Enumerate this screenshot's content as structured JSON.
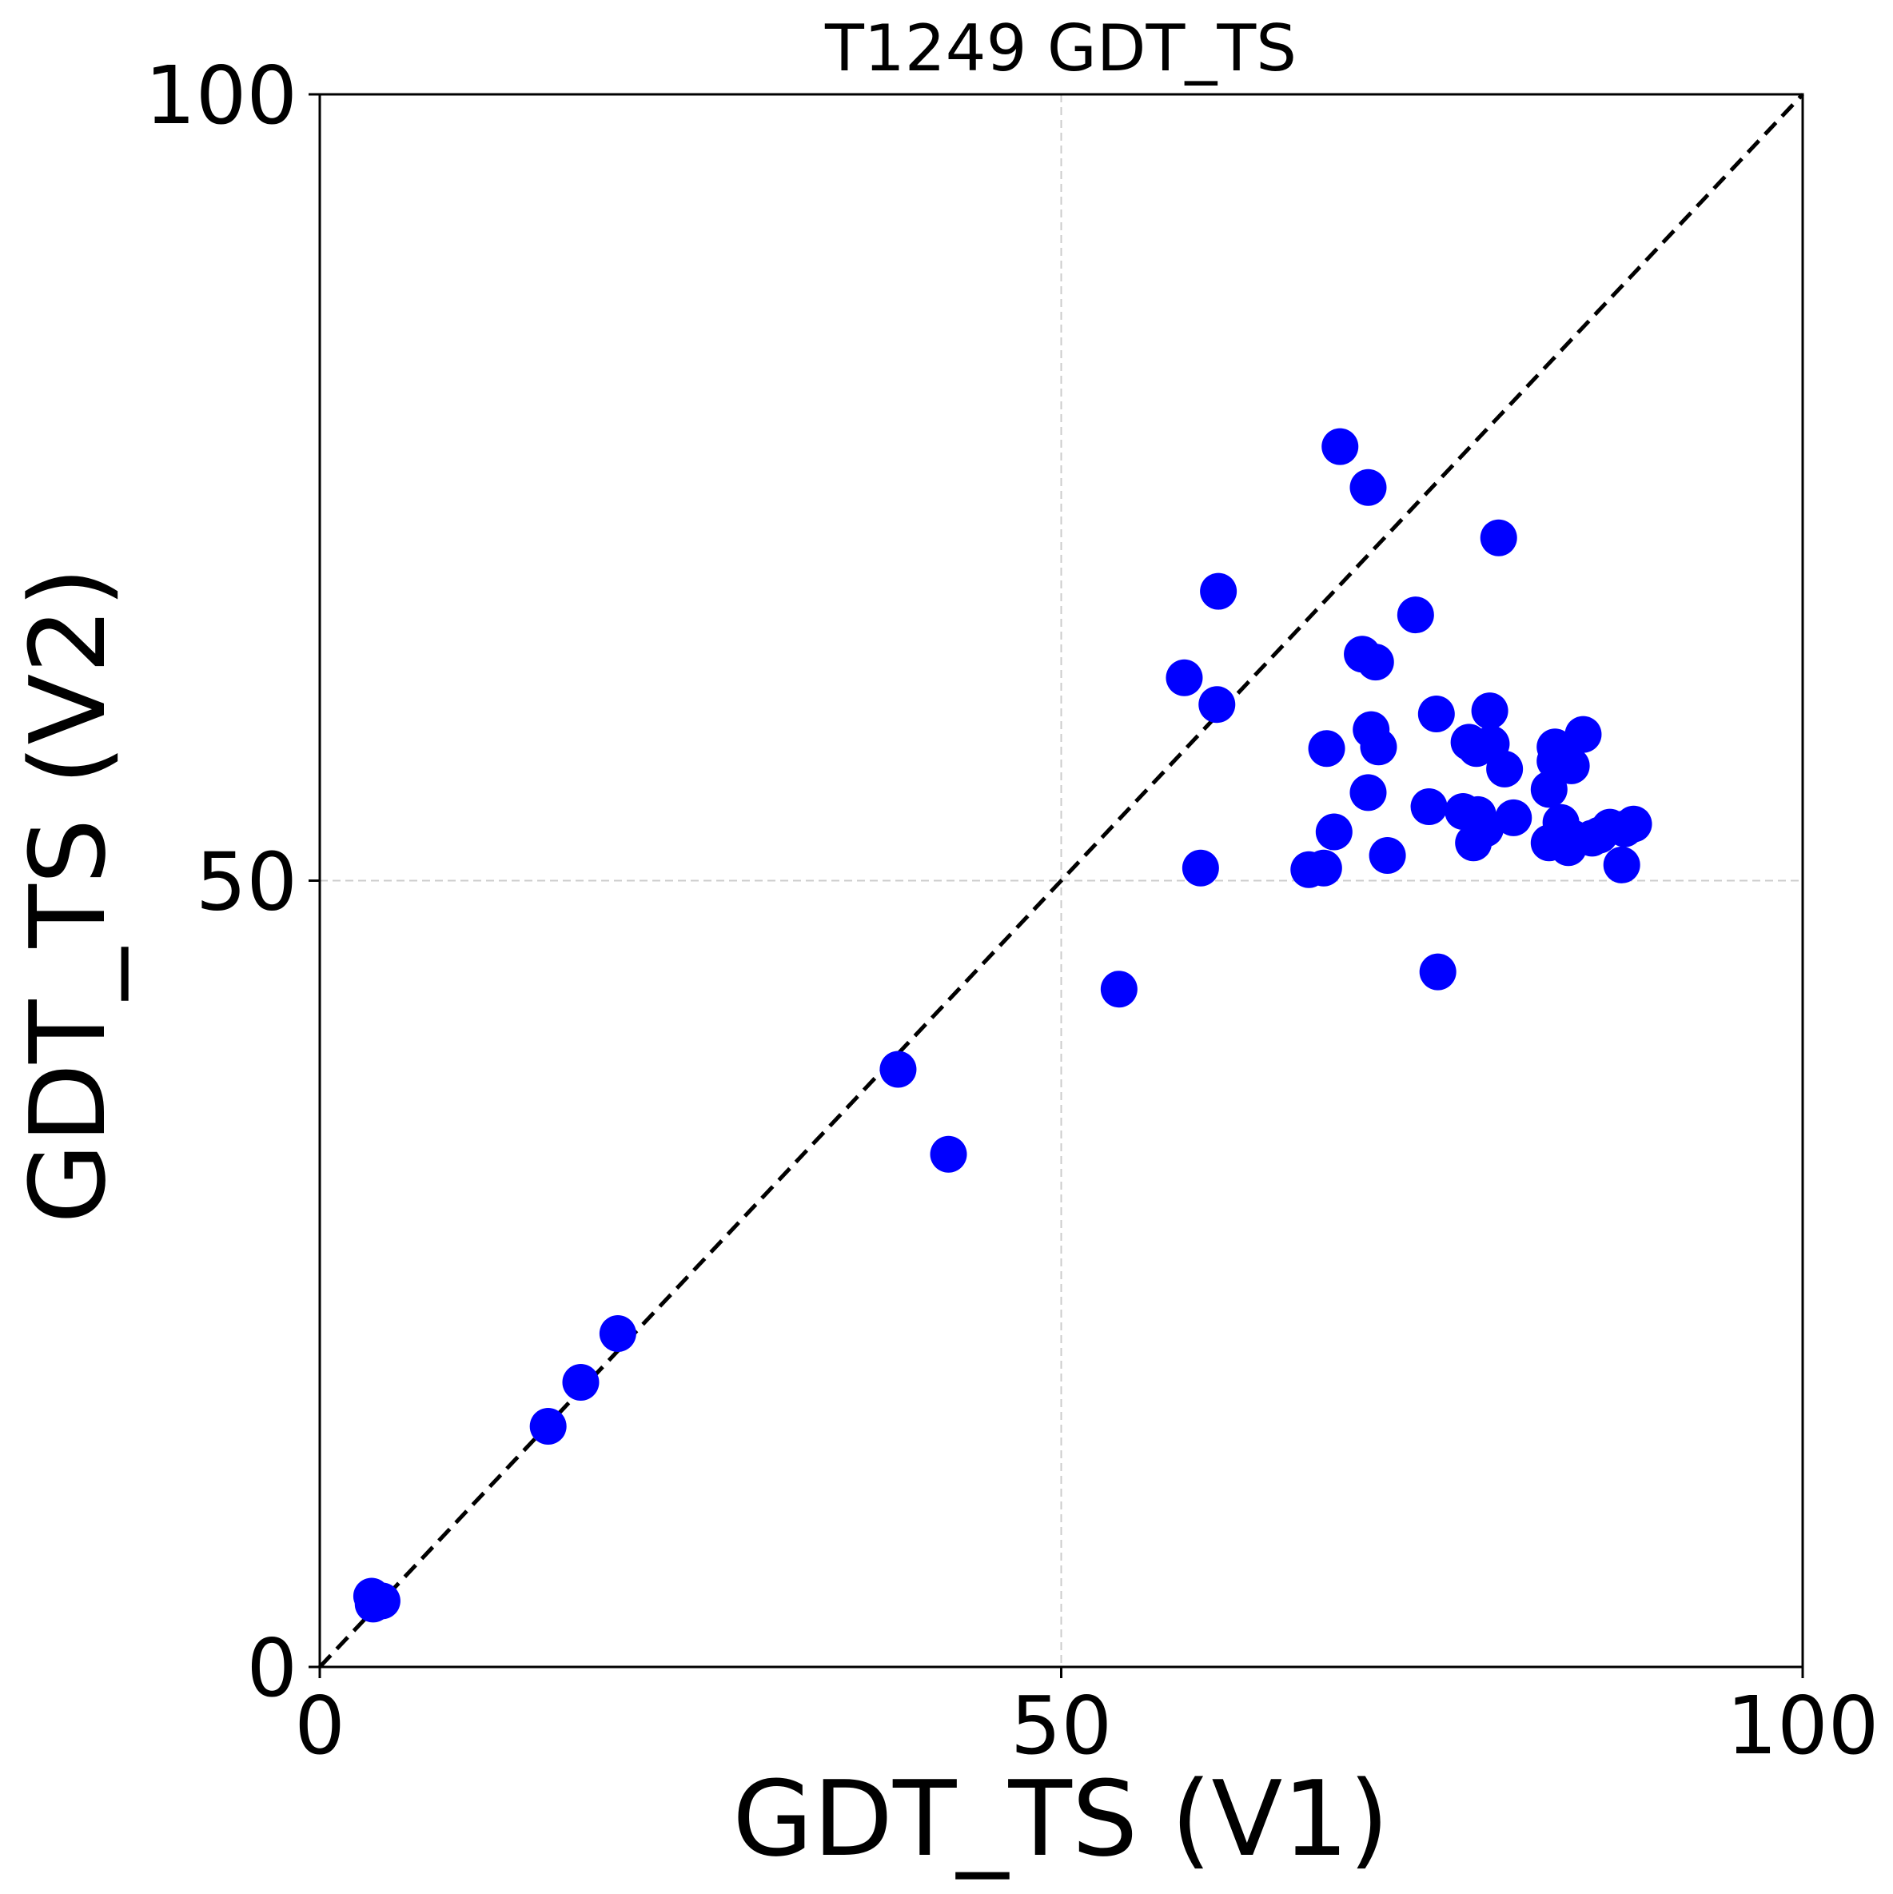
{
  "chart_data": {
    "type": "scatter",
    "title": "T1249 GDT_TS",
    "xlabel": "GDT_TS (V1)",
    "ylabel": "GDT_TS (V2)",
    "xlim": [
      0,
      100
    ],
    "ylim": [
      0,
      100
    ],
    "xticks": [
      "0",
      "50",
      "100"
    ],
    "yticks": [
      "0",
      "50",
      "100"
    ],
    "grid": true,
    "reference_line": "y = x (dashed)",
    "point_color": "#0000ff",
    "points": [
      {
        "x": 3.5,
        "y": 4.5
      },
      {
        "x": 3.6,
        "y": 4.0
      },
      {
        "x": 4.2,
        "y": 4.2
      },
      {
        "x": 15.4,
        "y": 15.3
      },
      {
        "x": 17.6,
        "y": 18.1
      },
      {
        "x": 20.1,
        "y": 21.2
      },
      {
        "x": 39.0,
        "y": 38.0
      },
      {
        "x": 42.4,
        "y": 32.6
      },
      {
        "x": 53.9,
        "y": 43.1
      },
      {
        "x": 58.3,
        "y": 62.9
      },
      {
        "x": 59.4,
        "y": 50.8
      },
      {
        "x": 60.5,
        "y": 61.2
      },
      {
        "x": 60.6,
        "y": 68.4
      },
      {
        "x": 66.7,
        "y": 50.7
      },
      {
        "x": 67.7,
        "y": 50.8
      },
      {
        "x": 67.9,
        "y": 58.4
      },
      {
        "x": 68.4,
        "y": 53.1
      },
      {
        "x": 68.8,
        "y": 77.6
      },
      {
        "x": 70.7,
        "y": 75.0
      },
      {
        "x": 70.3,
        "y": 64.4
      },
      {
        "x": 71.2,
        "y": 63.9
      },
      {
        "x": 70.9,
        "y": 59.6
      },
      {
        "x": 71.4,
        "y": 58.5
      },
      {
        "x": 70.7,
        "y": 55.6
      },
      {
        "x": 72.0,
        "y": 51.6
      },
      {
        "x": 73.9,
        "y": 66.9
      },
      {
        "x": 74.8,
        "y": 54.7
      },
      {
        "x": 75.3,
        "y": 60.6
      },
      {
        "x": 75.4,
        "y": 44.2
      },
      {
        "x": 77.1,
        "y": 54.4
      },
      {
        "x": 77.5,
        "y": 58.8
      },
      {
        "x": 78.0,
        "y": 58.4
      },
      {
        "x": 77.8,
        "y": 52.4
      },
      {
        "x": 78.1,
        "y": 54.2
      },
      {
        "x": 78.6,
        "y": 53.3
      },
      {
        "x": 78.9,
        "y": 60.8
      },
      {
        "x": 79.0,
        "y": 58.7
      },
      {
        "x": 79.5,
        "y": 71.8
      },
      {
        "x": 79.9,
        "y": 57.1
      },
      {
        "x": 80.5,
        "y": 54.0
      },
      {
        "x": 82.9,
        "y": 55.8
      },
      {
        "x": 82.9,
        "y": 52.4
      },
      {
        "x": 83.3,
        "y": 58.5
      },
      {
        "x": 83.3,
        "y": 57.6
      },
      {
        "x": 83.7,
        "y": 53.7
      },
      {
        "x": 84.2,
        "y": 52.1
      },
      {
        "x": 84.4,
        "y": 57.3
      },
      {
        "x": 84.5,
        "y": 52.7
      },
      {
        "x": 85.2,
        "y": 59.3
      },
      {
        "x": 85.8,
        "y": 52.7
      },
      {
        "x": 86.3,
        "y": 52.9
      },
      {
        "x": 87.0,
        "y": 53.4
      },
      {
        "x": 87.8,
        "y": 51.0
      },
      {
        "x": 88.0,
        "y": 53.3
      },
      {
        "x": 88.6,
        "y": 53.6
      }
    ]
  }
}
